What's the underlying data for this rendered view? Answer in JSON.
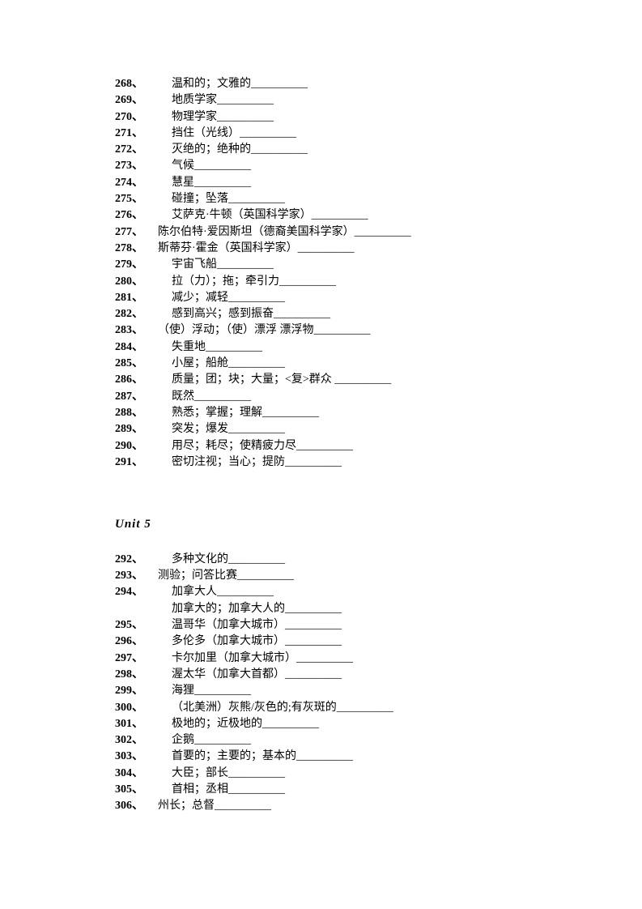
{
  "items": [
    {
      "num": "268、",
      "text": "温和的；文雅的__________",
      "indent": ""
    },
    {
      "num": "269、",
      "text": "地质学家__________",
      "indent": ""
    },
    {
      "num": "270、",
      "text": "物理学家__________",
      "indent": ""
    },
    {
      "num": "271、",
      "text": "挡住（光线）__________",
      "indent": ""
    },
    {
      "num": "272、",
      "text": "灭绝的；绝种的__________",
      "indent": ""
    },
    {
      "num": "273、",
      "text": "气候__________",
      "indent": ""
    },
    {
      "num": "274、",
      "text": "慧星__________",
      "indent": ""
    },
    {
      "num": "275、",
      "text": " 碰撞；坠落__________",
      "indent": ""
    },
    {
      "num": "276、",
      "text": "艾萨克·牛顿（英国科学家）__________",
      "indent": ""
    },
    {
      "num": "277、",
      "text": "陈尔伯特·爱因斯坦（德裔美国科学家）__________",
      "indent": "indent-neg"
    },
    {
      "num": "278、",
      "text": "斯蒂芬·霍金（英国科学家）__________",
      "indent": "indent-neg"
    },
    {
      "num": "279、",
      "text": "宇宙飞船__________",
      "indent": ""
    },
    {
      "num": "280、",
      "text": " 拉（力）；拖；牵引力__________",
      "indent": ""
    },
    {
      "num": "281、",
      "text": "减少；减轻__________",
      "indent": ""
    },
    {
      "num": "282、",
      "text": "感到高兴；感到振奋__________",
      "indent": ""
    },
    {
      "num": "283、",
      "text": "（使）浮动；（使）漂浮   漂浮物__________",
      "indent": "indent-neg"
    },
    {
      "num": "284、",
      "text": "失重地__________",
      "indent": ""
    },
    {
      "num": "285、",
      "text": "小屋；船舱__________",
      "indent": ""
    },
    {
      "num": "286、",
      "text": "质量；团；块；大量；<复>群众  __________",
      "indent": ""
    },
    {
      "num": "287、",
      "text": "既然__________",
      "indent": ""
    },
    {
      "num": "288、",
      "text": "熟悉；掌握；理解__________",
      "indent": ""
    },
    {
      "num": "289、",
      "text": "突发；爆发__________",
      "indent": ""
    },
    {
      "num": "290、",
      "text": "用尽；耗尽；使精疲力尽__________",
      "indent": ""
    },
    {
      "num": "291、",
      "text": "密切注视；当心；提防__________",
      "indent": ""
    }
  ],
  "unit_title": "Unit    5",
  "items2": [
    {
      "num": "292、",
      "text": "多种文化的__________",
      "indent": ""
    },
    {
      "num": "293、",
      "text": " 测验；问答比赛__________",
      "indent": "indent-neg"
    },
    {
      "num": "294、",
      "text": "加拿大人__________",
      "indent": ""
    },
    {
      "num": "",
      "text": "加拿大的；加拿大人的__________",
      "indent": "sub"
    },
    {
      "num": "295、",
      "text": "温哥华（加拿大城市）__________",
      "indent": ""
    },
    {
      "num": "296、",
      "text": "多伦多（加拿大城市）__________",
      "indent": ""
    },
    {
      "num": "297、",
      "text": "卡尔加里（加拿大城市）__________",
      "indent": ""
    },
    {
      "num": "298、",
      "text": "渥太华（加拿大首都）__________",
      "indent": ""
    },
    {
      "num": "299、",
      "text": "海狸__________",
      "indent": ""
    },
    {
      "num": "300、",
      "text": "（北美洲）灰熊/灰色的;有灰斑的__________",
      "indent": ""
    },
    {
      "num": "301、",
      "text": "极地的；近极地的__________",
      "indent": ""
    },
    {
      "num": "302、",
      "text": "企鹅__________",
      "indent": ""
    },
    {
      "num": "303、",
      "text": "首要的；主要的；基本的__________",
      "indent": ""
    },
    {
      "num": "304、",
      "text": "大臣；部长__________",
      "indent": ""
    },
    {
      "num": "305、",
      "text": " 首相；丞相__________",
      "indent": ""
    },
    {
      "num": "306、",
      "text": "州长；总督__________",
      "indent": "indent-neg"
    }
  ]
}
